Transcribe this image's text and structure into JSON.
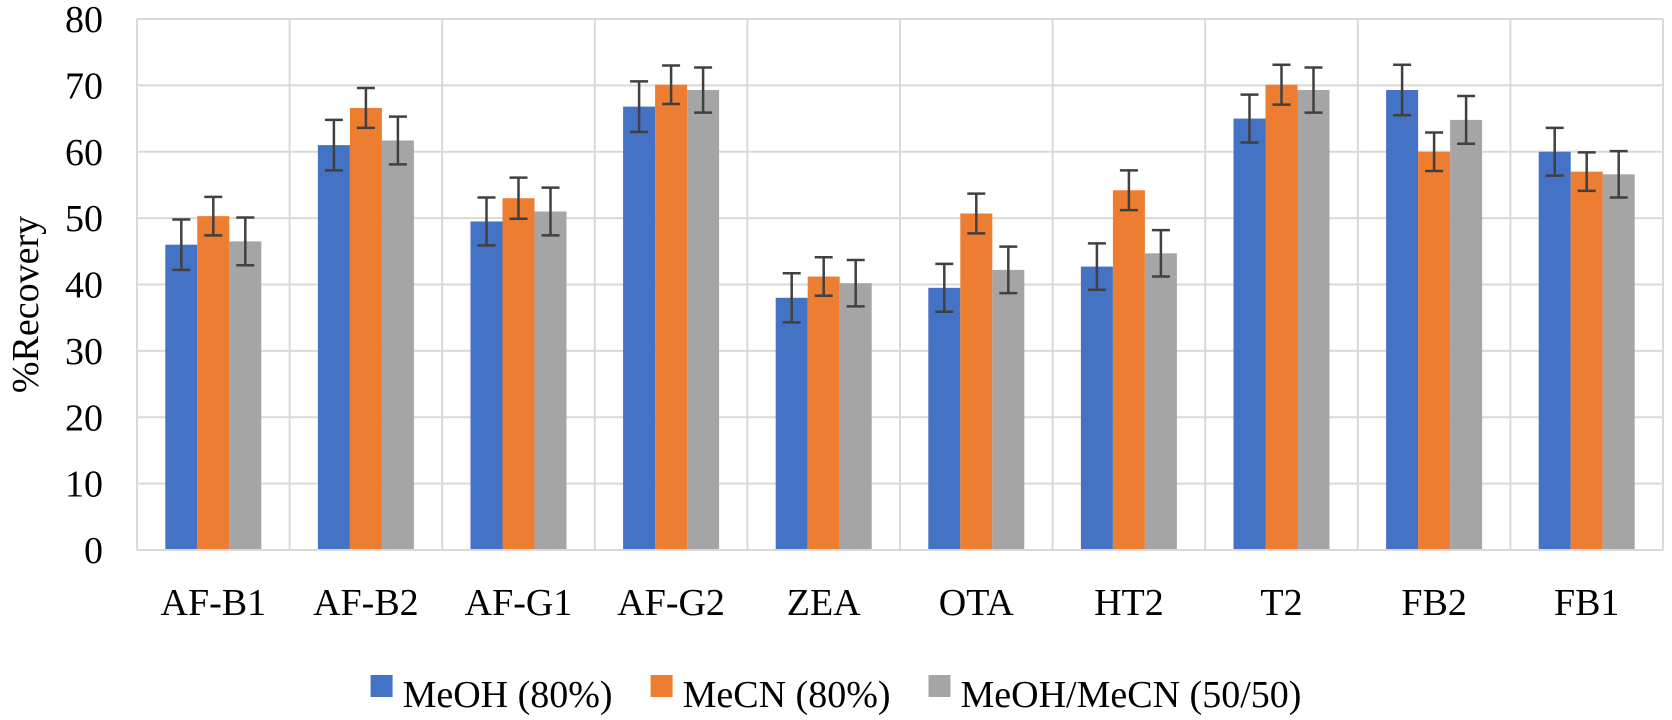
{
  "chart_data": {
    "type": "bar",
    "title": "",
    "xlabel": "",
    "ylabel": "%Recovery",
    "ylim": [
      0,
      80
    ],
    "yticks": [
      0,
      10,
      20,
      30,
      40,
      50,
      60,
      70,
      80
    ],
    "grid": true,
    "legend_position": "bottom",
    "categories": [
      "AF-B1",
      "AF-B2",
      "AF-G1",
      "AF-G2",
      "ZEA",
      "OTA",
      "HT2",
      "T2",
      "FB2",
      "FB1"
    ],
    "series": [
      {
        "name": "MeOH (80%)",
        "color": "#4472c4",
        "values": [
          46.0,
          61.0,
          49.5,
          66.8,
          38.0,
          39.5,
          42.7,
          65.0,
          69.3,
          60.0
        ],
        "errors": [
          3.8,
          3.8,
          3.6,
          3.8,
          3.7,
          3.6,
          3.5,
          3.6,
          3.8,
          3.6
        ]
      },
      {
        "name": "MeCN (80%)",
        "color": "#ed7d31",
        "values": [
          50.3,
          66.6,
          53.0,
          70.1,
          41.2,
          50.7,
          54.2,
          70.1,
          60.0,
          57.0
        ],
        "errors": [
          2.9,
          3.0,
          3.1,
          2.9,
          2.9,
          3.0,
          3.0,
          3.0,
          2.9,
          2.9
        ]
      },
      {
        "name": "MeOH/MeCN (50/50)",
        "color": "#a5a5a5",
        "values": [
          46.5,
          61.7,
          51.0,
          69.3,
          40.2,
          42.2,
          44.7,
          69.3,
          64.8,
          56.6
        ],
        "errors": [
          3.6,
          3.6,
          3.6,
          3.4,
          3.5,
          3.5,
          3.5,
          3.4,
          3.6,
          3.5
        ]
      }
    ]
  }
}
